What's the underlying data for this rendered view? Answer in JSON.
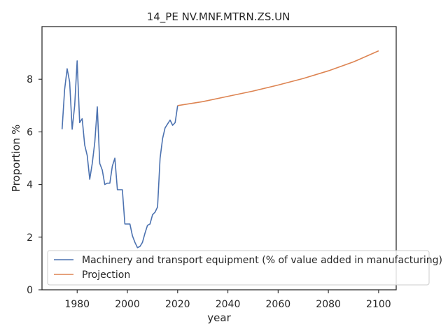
{
  "chart_data": {
    "type": "line",
    "title": "14_PE NV.MNF.MTRN.ZS.UN",
    "xlabel": "year",
    "ylabel": "Proportion %",
    "xlim": [
      1966,
      2107
    ],
    "ylim": [
      0,
      10
    ],
    "xticks": [
      1980,
      2000,
      2020,
      2040,
      2060,
      2080,
      2100
    ],
    "yticks": [
      0,
      2,
      4,
      6,
      8
    ],
    "grid": false,
    "legend_position": "lower-left",
    "series": [
      {
        "name": "Machinery and transport equipment (% of value added in manufacturing)",
        "color": "#4c72b0",
        "x": [
          1974,
          1975,
          1976,
          1977,
          1978,
          1979,
          1980,
          1981,
          1982,
          1983,
          1984,
          1985,
          1986,
          1987,
          1988,
          1989,
          1990,
          1991,
          1992,
          1993,
          1994,
          1995,
          1996,
          1997,
          1998,
          1999,
          2000,
          2001,
          2002,
          2003,
          2004,
          2005,
          2006,
          2007,
          2008,
          2009,
          2010,
          2011,
          2012,
          2013,
          2014,
          2015,
          2016,
          2017,
          2018,
          2019,
          2020
        ],
        "y": [
          6.1,
          7.6,
          8.4,
          7.9,
          6.1,
          7.0,
          8.7,
          6.35,
          6.5,
          5.5,
          5.1,
          4.2,
          4.8,
          5.6,
          6.95,
          4.8,
          4.55,
          4.0,
          4.05,
          4.05,
          4.7,
          5.0,
          3.8,
          3.8,
          3.8,
          2.5,
          2.5,
          2.5,
          2.05,
          1.8,
          1.6,
          1.65,
          1.8,
          2.15,
          2.45,
          2.5,
          2.85,
          2.95,
          3.15,
          5.0,
          5.75,
          6.15,
          6.3,
          6.45,
          6.25,
          6.35,
          7.0
        ]
      },
      {
        "name": "Projection",
        "color": "#dd8452",
        "x": [
          2020,
          2030,
          2040,
          2050,
          2060,
          2070,
          2080,
          2090,
          2100
        ],
        "y": [
          7.0,
          7.15,
          7.35,
          7.55,
          7.78,
          8.03,
          8.32,
          8.66,
          9.08
        ]
      }
    ]
  }
}
